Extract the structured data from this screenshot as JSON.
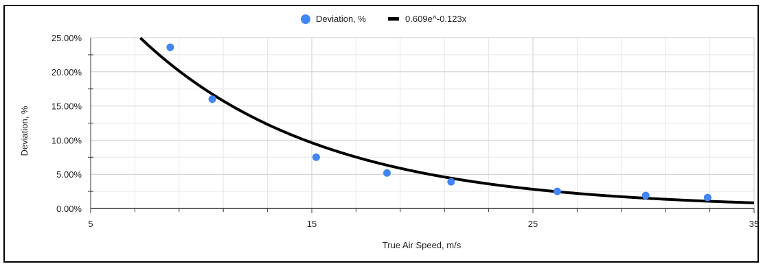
{
  "chart_data": {
    "type": "scatter",
    "xlabel": "True Air Speed, m/s",
    "ylabel": "Deviation, %",
    "xlim": [
      5,
      35
    ],
    "ylim": [
      0,
      0.25
    ],
    "x_ticks": [
      5,
      15,
      25,
      35
    ],
    "x_tick_labels": [
      "5",
      "15",
      "25",
      "35"
    ],
    "y_ticks": [
      0,
      0.05,
      0.1,
      0.15,
      0.2,
      0.25
    ],
    "y_tick_labels": [
      "0.00%",
      "5.00%",
      "10.00%",
      "15.00%",
      "20.00%",
      "25.00%"
    ],
    "grid": true,
    "legend_position": "top-center",
    "series": [
      {
        "name": "Deviation, %",
        "color": "#4285f4",
        "x": [
          8.6,
          10.5,
          15.2,
          18.4,
          21.3,
          26.1,
          30.1,
          32.9
        ],
        "y": [
          0.236,
          0.16,
          0.075,
          0.052,
          0.039,
          0.025,
          0.019,
          0.016
        ]
      }
    ],
    "trendline": {
      "name": "0.609e^-0.123x",
      "type": "exponential",
      "a": 0.609,
      "b": -0.123,
      "color": "#000000"
    }
  }
}
